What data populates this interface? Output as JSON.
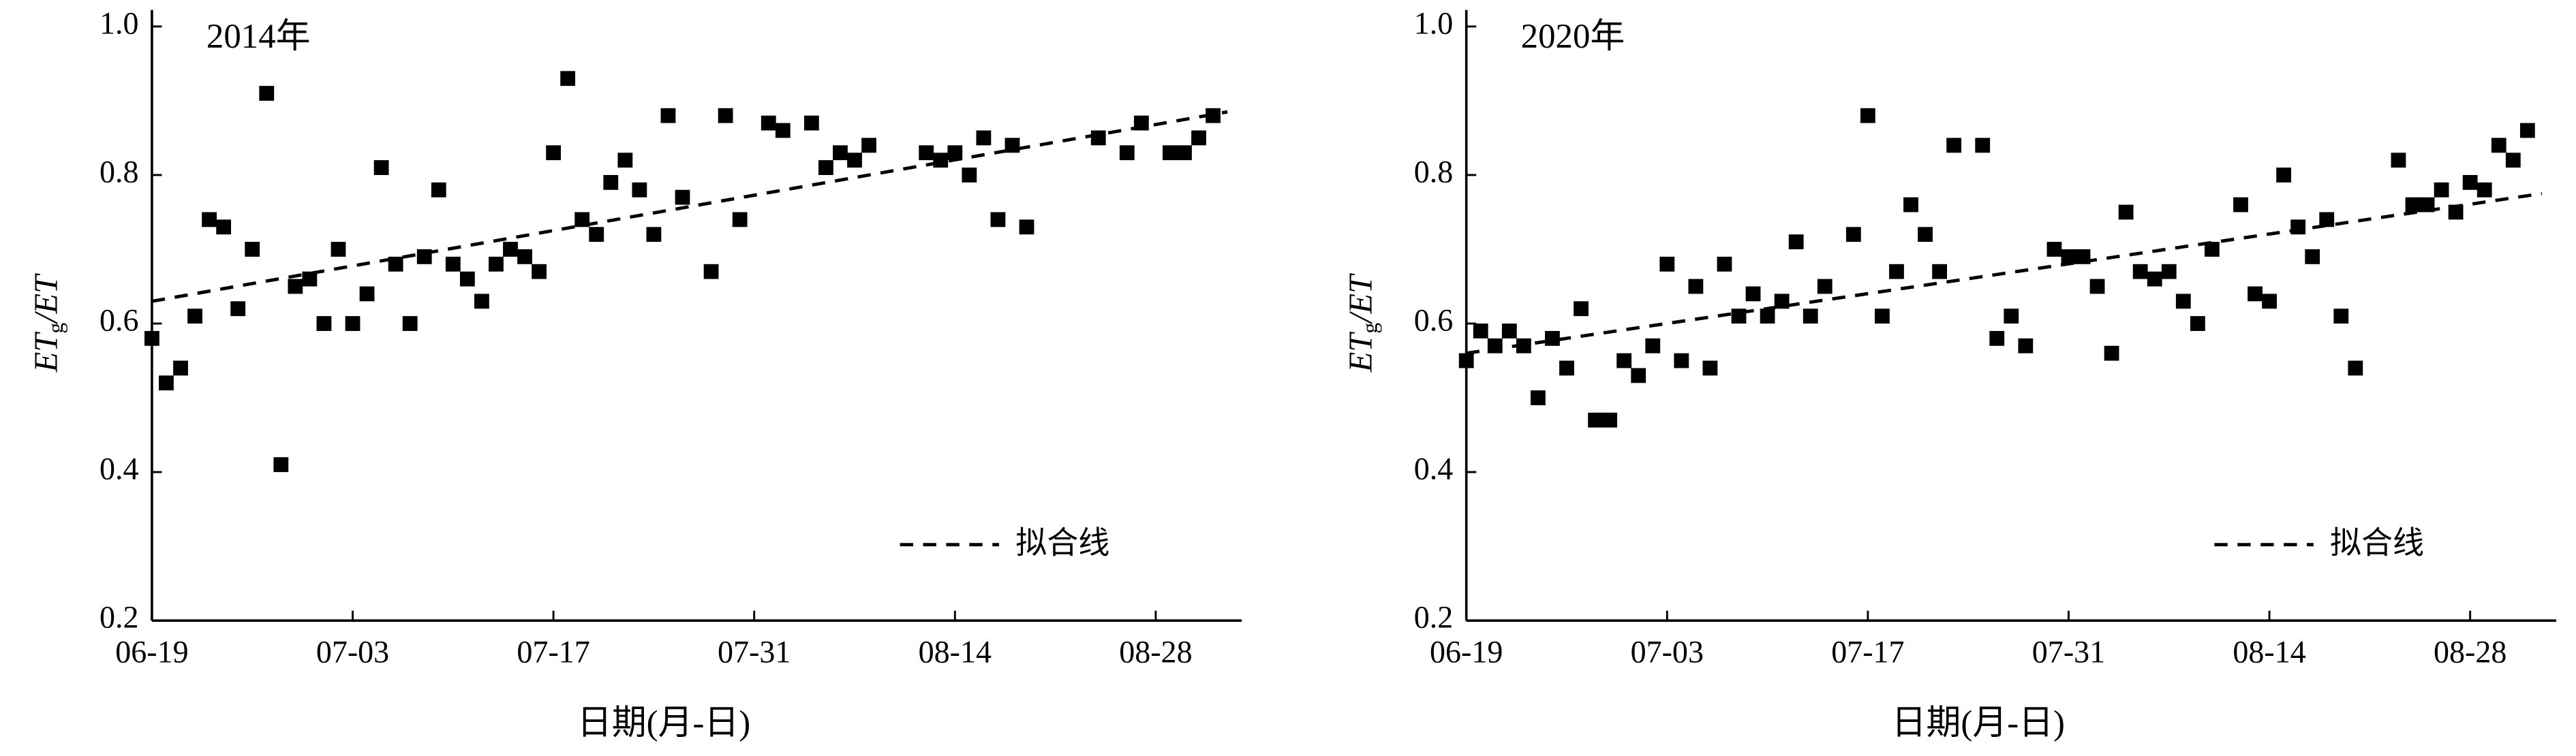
{
  "chart_data": [
    {
      "type": "scatter",
      "title": "2014年",
      "xlabel": "日期(月-日)",
      "ylabel": {
        "main": "ET",
        "sub": "g",
        "rest": "/ET"
      },
      "color": "#000000",
      "x": [
        "06-19",
        "06-20",
        "06-21",
        "06-22",
        "06-23",
        "06-24",
        "06-25",
        "06-26",
        "06-27",
        "06-28",
        "06-29",
        "06-30",
        "07-01",
        "07-02",
        "07-03",
        "07-04",
        "07-05",
        "07-06",
        "07-07",
        "07-08",
        "07-09",
        "07-10",
        "07-11",
        "07-12",
        "07-13",
        "07-14",
        "07-15",
        "07-16",
        "07-17",
        "07-18",
        "07-19",
        "07-20",
        "07-21",
        "07-22",
        "07-23",
        "07-24",
        "07-25",
        "07-26",
        "07-28",
        "07-29",
        "07-30",
        "08-01",
        "08-02",
        "08-04",
        "08-05",
        "08-06",
        "08-07",
        "08-08",
        "08-12",
        "08-13",
        "08-14",
        "08-15",
        "08-16",
        "08-17",
        "08-18",
        "08-19",
        "08-24",
        "08-26",
        "08-27",
        "08-29",
        "08-30",
        "08-31",
        "09-01"
      ],
      "values": [
        0.58,
        0.52,
        0.54,
        0.61,
        0.74,
        0.73,
        0.62,
        0.7,
        0.91,
        0.41,
        0.65,
        0.66,
        0.6,
        0.7,
        0.6,
        0.64,
        0.81,
        0.68,
        0.6,
        0.69,
        0.78,
        0.68,
        0.66,
        0.63,
        0.68,
        0.7,
        0.69,
        0.67,
        0.83,
        0.93,
        0.74,
        0.72,
        0.79,
        0.82,
        0.78,
        0.72,
        0.88,
        0.77,
        0.67,
        0.88,
        0.74,
        0.87,
        0.86,
        0.87,
        0.81,
        0.83,
        0.82,
        0.84,
        0.83,
        0.82,
        0.83,
        0.8,
        0.85,
        0.74,
        0.84,
        0.73,
        0.85,
        0.83,
        0.87,
        0.83,
        0.83,
        0.85,
        0.88
      ],
      "fit_line": {
        "name": "拟合线",
        "x": [
          "06-19",
          "09-02"
        ],
        "values": [
          0.63,
          0.885
        ]
      },
      "xlim": [
        "06-19",
        "09-03"
      ],
      "xticks": [
        "06-19",
        "07-03",
        "07-17",
        "07-31",
        "08-14",
        "08-28"
      ],
      "ylim": [
        0.2,
        1.0
      ],
      "yticks": [
        0.2,
        0.4,
        0.6,
        0.8,
        {
          "value": 1.0,
          "label": "1.0"
        }
      ]
    },
    {
      "type": "scatter",
      "title": "2020年",
      "xlabel": "日期(月-日)",
      "ylabel": {
        "main": "ET",
        "sub": "g",
        "rest": "/ET"
      },
      "color": "#000000",
      "x": [
        "06-19",
        "06-20",
        "06-21",
        "06-22",
        "06-23",
        "06-24",
        "06-25",
        "06-26",
        "06-27",
        "06-28",
        "06-29",
        "06-30",
        "07-01",
        "07-02",
        "07-03",
        "07-04",
        "07-05",
        "07-06",
        "07-07",
        "07-08",
        "07-09",
        "07-10",
        "07-11",
        "07-12",
        "07-13",
        "07-14",
        "07-16",
        "07-17",
        "07-18",
        "07-19",
        "07-20",
        "07-21",
        "07-22",
        "07-23",
        "07-25",
        "07-26",
        "07-27",
        "07-28",
        "07-30",
        "07-31",
        "08-01",
        "08-02",
        "08-03",
        "08-04",
        "08-05",
        "08-06",
        "08-07",
        "08-08",
        "08-09",
        "08-10",
        "08-12",
        "08-13",
        "08-14",
        "08-15",
        "08-16",
        "08-17",
        "08-18",
        "08-19",
        "08-20",
        "08-23",
        "08-24",
        "08-25",
        "08-26",
        "08-27",
        "08-28",
        "08-29",
        "08-30",
        "08-31",
        "09-01"
      ],
      "values": [
        0.55,
        0.59,
        0.57,
        0.59,
        0.57,
        0.5,
        0.58,
        0.54,
        0.62,
        0.47,
        0.47,
        0.55,
        0.53,
        0.57,
        0.68,
        0.55,
        0.65,
        0.54,
        0.68,
        0.61,
        0.64,
        0.61,
        0.63,
        0.71,
        0.61,
        0.65,
        0.72,
        0.88,
        0.61,
        0.67,
        0.76,
        0.72,
        0.67,
        0.84,
        0.84,
        0.58,
        0.61,
        0.57,
        0.7,
        0.69,
        0.69,
        0.65,
        0.56,
        0.75,
        0.67,
        0.66,
        0.67,
        0.63,
        0.6,
        0.7,
        0.76,
        0.64,
        0.63,
        0.8,
        0.73,
        0.69,
        0.74,
        0.61,
        0.54,
        0.82,
        0.76,
        0.76,
        0.78,
        0.75,
        0.79,
        0.78,
        0.84,
        0.82,
        0.86
      ],
      "fit_line": {
        "name": "拟合线",
        "x": [
          "06-19",
          "09-02"
        ],
        "values": [
          0.56,
          0.775
        ]
      },
      "xlim": [
        "06-19",
        "09-03"
      ],
      "xticks": [
        "06-19",
        "07-03",
        "07-17",
        "07-31",
        "08-14",
        "08-28"
      ],
      "ylim": [
        0.2,
        1.0
      ],
      "yticks": [
        0.2,
        0.4,
        0.6,
        0.8,
        {
          "value": 1.0,
          "label": "1.0"
        }
      ]
    }
  ]
}
